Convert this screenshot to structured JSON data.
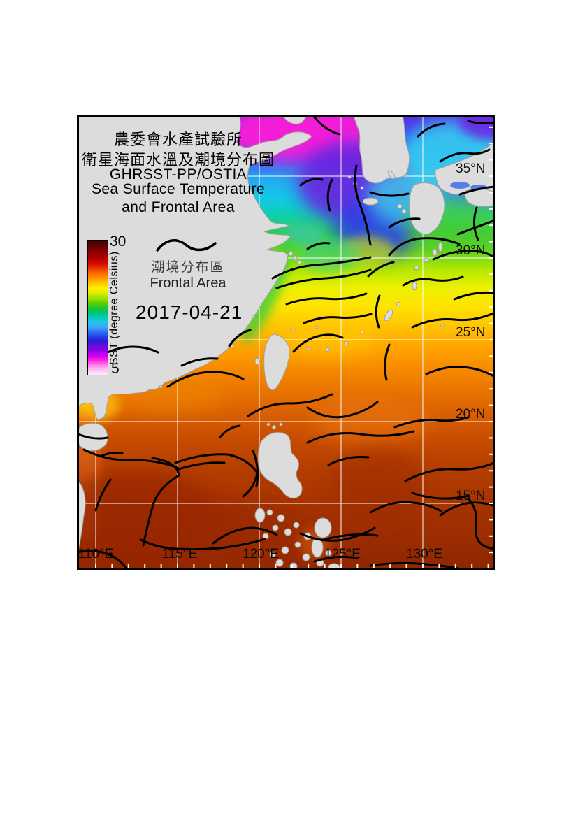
{
  "map": {
    "title_lines": [
      "農委會水產試驗所",
      "衛星海面水溫及潮境分布圖",
      "GHRSST-PP/OSTIA",
      "Sea Surface Temperature",
      "and Frontal Area"
    ],
    "date": "2017-04-21",
    "legend": {
      "zh": "潮境分布區",
      "en": "Frontal Area",
      "symbol": "wavy-line"
    },
    "colorbar": {
      "label": "SST (degree Celsius)",
      "max_label": "30",
      "min_label": "5",
      "min_value": 5,
      "max_value": 30,
      "unit": "degree Celsius",
      "stops": [
        "#3F0000",
        "#5E0000",
        "#7E0000",
        "#9C0000",
        "#BC0000",
        "#DC1000",
        "#F04000",
        "#FF7000",
        "#FF9C00",
        "#FFC800",
        "#FFF000",
        "#D8EC00",
        "#A0E000",
        "#60D200",
        "#20C428",
        "#00C470",
        "#00CAB8",
        "#20C8E8",
        "#40A8F8",
        "#2F74F2",
        "#2244E2",
        "#3318D2",
        "#6310DC",
        "#9400E8",
        "#C900F0",
        "#FF22E0",
        "#FF84EA",
        "#FFC4F2",
        "#FFEAFA"
      ]
    },
    "axes": {
      "lat_labels": [
        "35°N",
        "30°N",
        "25°N",
        "20°N",
        "15°N"
      ],
      "lon_labels": [
        "110°E",
        "115°E",
        "120°E",
        "125°E",
        "130°E"
      ],
      "grid_lats": [
        35,
        30,
        25,
        20,
        15
      ],
      "grid_lons": [
        110,
        115,
        120,
        125,
        130
      ],
      "tick_step_deg": 1
    },
    "sst_field_stops": [
      [
        "0",
        "#5A2BE0"
      ],
      [
        "0.05",
        "#3C3BEE"
      ],
      [
        "0.10",
        "#2E6BF5"
      ],
      [
        "0.14",
        "#25A8F0"
      ],
      [
        "0.18",
        "#12C8E8"
      ],
      [
        "0.22",
        "#10CFAF"
      ],
      [
        "0.26",
        "#2BCC55"
      ],
      [
        "0.30",
        "#6FD81C"
      ],
      [
        "0.34",
        "#B6E800"
      ],
      [
        "0.38",
        "#EDF000"
      ],
      [
        "0.42",
        "#FFE400"
      ],
      [
        "0.46",
        "#FFC700"
      ],
      [
        "0.51",
        "#FFA400"
      ],
      [
        "0.56",
        "#F68900"
      ],
      [
        "0.61",
        "#E87200"
      ],
      [
        "0.66",
        "#D85E04"
      ],
      [
        "0.72",
        "#C44A00"
      ],
      [
        "0.79",
        "#B23C00"
      ],
      [
        "0.87",
        "#A43200"
      ],
      [
        "1",
        "#8F2600"
      ]
    ],
    "land_color": "#DCDCDC",
    "grid_color": "#FFFFFF",
    "front_color": "#000000"
  }
}
